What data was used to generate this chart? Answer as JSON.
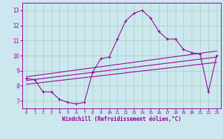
{
  "xlabel": "Windchill (Refroidissement éolien,°C)",
  "bg_color": "#cce8ee",
  "grid_color": "#b0d4cc",
  "line_color": "#990099",
  "xlim": [
    -0.5,
    23.5
  ],
  "ylim": [
    6.5,
    13.5
  ],
  "yticks": [
    7,
    8,
    9,
    10,
    11,
    12,
    13
  ],
  "xticks": [
    0,
    1,
    2,
    3,
    4,
    5,
    6,
    7,
    8,
    9,
    10,
    11,
    12,
    13,
    14,
    15,
    16,
    17,
    18,
    19,
    20,
    21,
    22,
    23
  ],
  "main_line": [
    [
      0,
      8.5
    ],
    [
      1,
      8.4
    ],
    [
      2,
      7.6
    ],
    [
      3,
      7.6
    ],
    [
      4,
      7.1
    ],
    [
      5,
      6.9
    ],
    [
      6,
      6.8
    ],
    [
      7,
      6.9
    ],
    [
      8,
      8.9
    ],
    [
      9,
      9.8
    ],
    [
      10,
      9.9
    ],
    [
      11,
      11.1
    ],
    [
      12,
      12.3
    ],
    [
      13,
      12.8
    ],
    [
      14,
      13.0
    ],
    [
      15,
      12.5
    ],
    [
      16,
      11.6
    ],
    [
      17,
      11.1
    ],
    [
      18,
      11.1
    ],
    [
      19,
      10.4
    ],
    [
      20,
      10.2
    ],
    [
      21,
      10.1
    ],
    [
      22,
      7.6
    ],
    [
      23,
      10.0
    ]
  ],
  "line2": [
    [
      0,
      8.6
    ],
    [
      23,
      10.3
    ]
  ],
  "line3": [
    [
      0,
      8.35
    ],
    [
      23,
      9.9
    ]
  ],
  "line4": [
    [
      0,
      8.1
    ],
    [
      23,
      9.55
    ]
  ]
}
